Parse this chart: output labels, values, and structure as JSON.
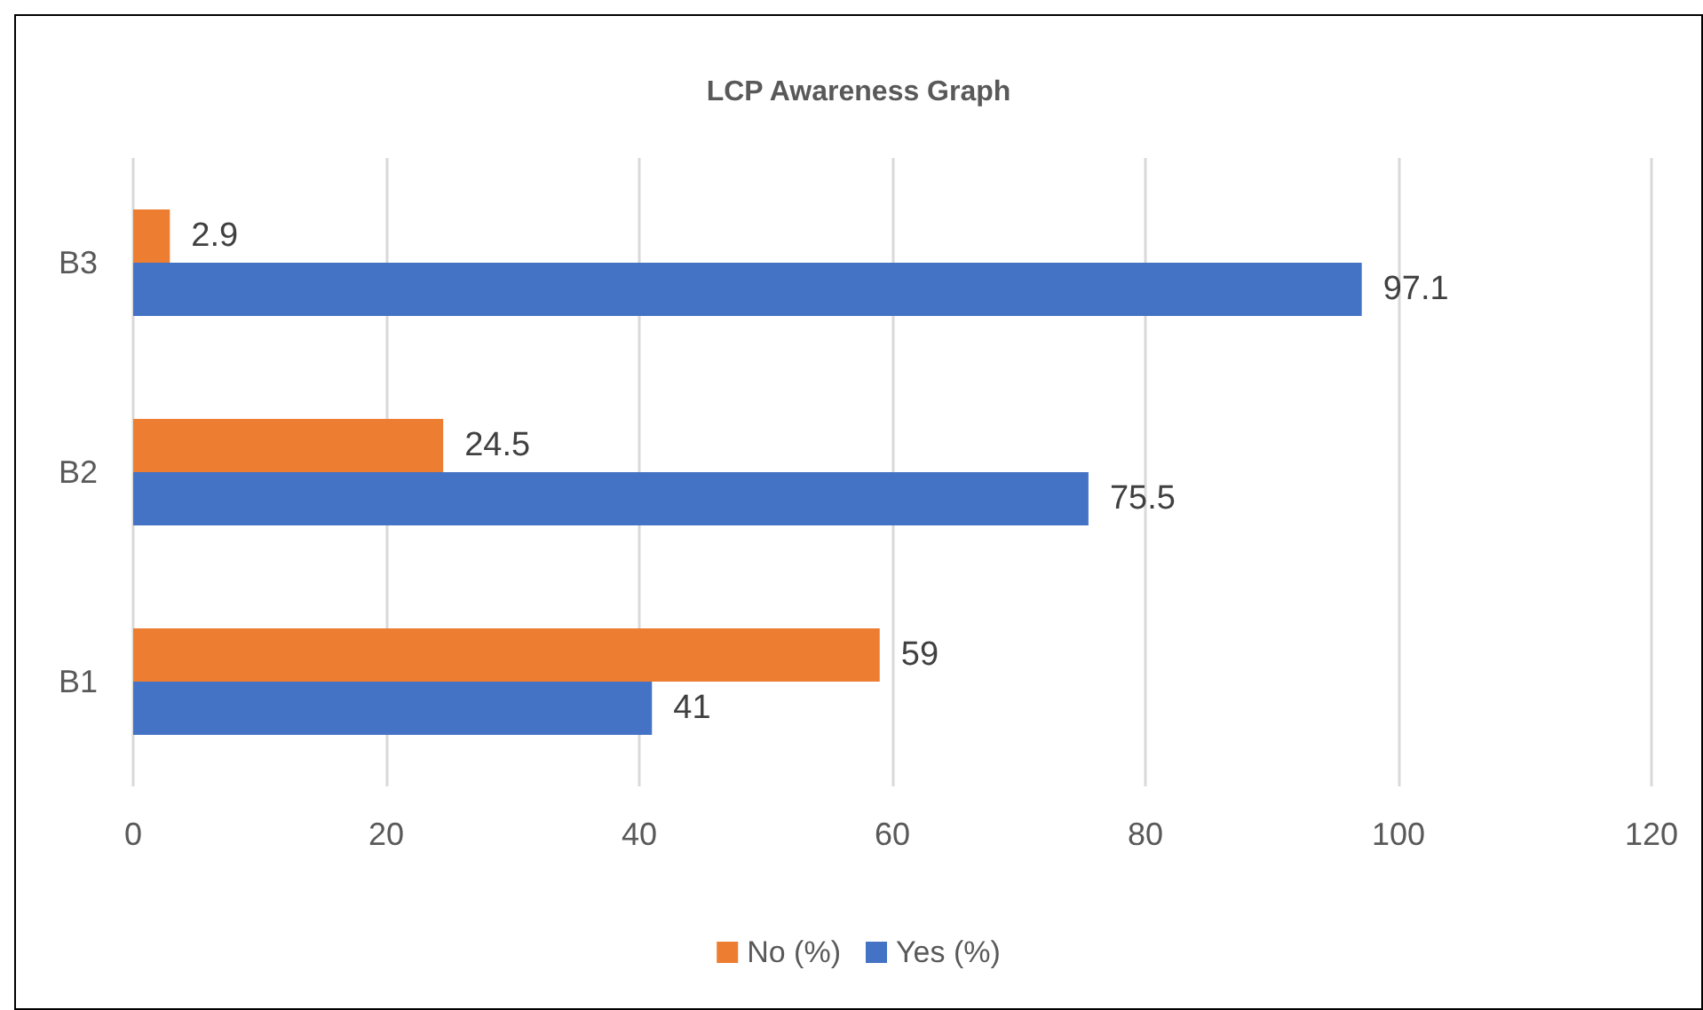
{
  "chart_data": {
    "type": "bar",
    "orientation": "horizontal",
    "title": "LCP Awareness Graph",
    "categories": [
      "B3",
      "B2",
      "B1"
    ],
    "series": [
      {
        "name": "No (%)",
        "color": "#ed7d31",
        "values": [
          2.9,
          24.5,
          59
        ]
      },
      {
        "name": "Yes (%)",
        "color": "#4472c4",
        "values": [
          97.1,
          75.5,
          41
        ]
      }
    ],
    "xlim": [
      0,
      120
    ],
    "xticks": [
      0,
      20,
      40,
      60,
      80,
      100,
      120
    ],
    "grid": "x",
    "legend": "bottom",
    "data_labels": true
  }
}
